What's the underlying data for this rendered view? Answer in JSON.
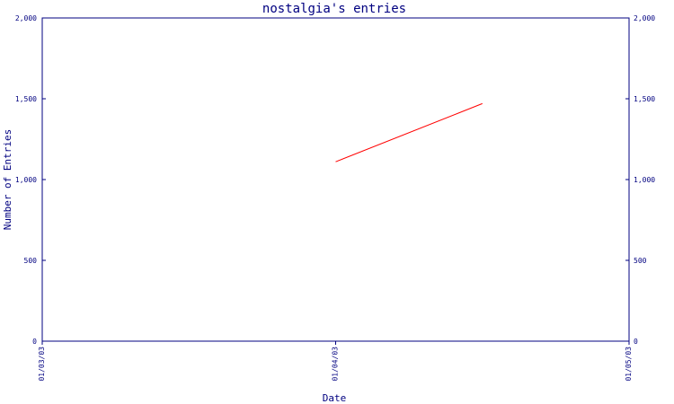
{
  "chart_data": {
    "type": "line",
    "title": "nostalgia's entries",
    "xlabel": "Date",
    "ylabel": "Number of Entries",
    "x_ticks": [
      "01/03/03",
      "01/04/03",
      "01/05/03"
    ],
    "y_ticks": [
      "0",
      "500",
      "1,000",
      "1,500",
      "2,000"
    ],
    "ylim": [
      0,
      2000
    ],
    "xlim": [
      "01/03/03",
      "01/05/03"
    ],
    "series": [
      {
        "color": "#ff0000",
        "x": [
          "01/04/03",
          "01/04/03 12:00"
        ],
        "values": [
          1110,
          1470
        ]
      }
    ],
    "right_axis_mirrored": true,
    "grid": false,
    "axis_color": "#000080"
  }
}
